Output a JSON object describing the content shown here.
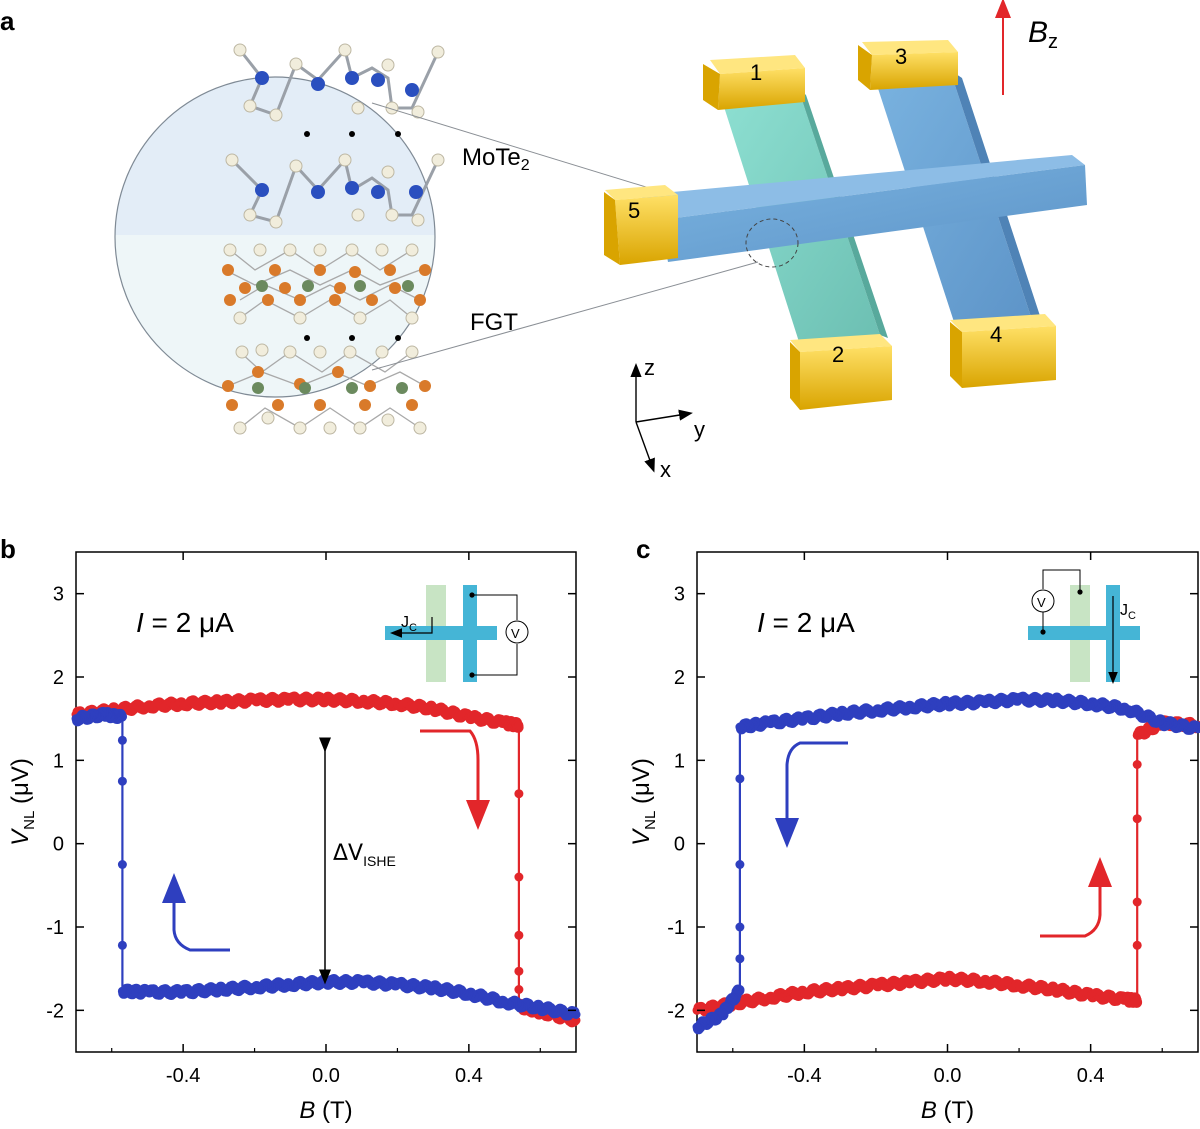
{
  "panel_labels": {
    "a": "a",
    "b": "b",
    "c": "c"
  },
  "schematic": {
    "layer_top": "MoTe",
    "layer_top_sub": "2",
    "layer_bottom": "FGT",
    "field_label": "B",
    "field_label_sub": "z",
    "contacts": [
      "1",
      "2",
      "3",
      "4",
      "5"
    ],
    "axes": {
      "z": "z",
      "y": "y",
      "x": "x"
    }
  },
  "colors": {
    "blue": "#2e3fbf",
    "red": "#e2262a",
    "contact_gold": "#f2c200",
    "channel_blue": "#6fa6d6",
    "channel_green": "#7ccdc0",
    "mo_atom": "#2a4fbf",
    "te_atom": "#f1eddc",
    "fe_atom": "#d97a2a",
    "ge_atom": "#6b8a5e"
  },
  "chart_data": [
    {
      "panel": "b",
      "type": "scatter",
      "annotation": "I = 2 μA",
      "annotation_parts": {
        "italic": "I",
        "rest": " = 2 μA"
      },
      "delta_label": "ΔV",
      "delta_label_sub": "ISHE",
      "inset_current_label": "J",
      "inset_current_sub": "C",
      "inset_meter_label": "V",
      "xlabel": "B (T)",
      "xlabel_parts": {
        "italic": "B",
        "rest": " (T)"
      },
      "ylabel": "V_NL (μV)",
      "ylabel_parts": {
        "italic": "V",
        "sub": "NL",
        "rest": " (μV)"
      },
      "xlim": [
        -0.7,
        0.7
      ],
      "ylim": [
        -2.5,
        3.5
      ],
      "xticks": [
        -0.4,
        0.0,
        0.4
      ],
      "xtick_labels": [
        "-0.4",
        "0.0",
        "0.4"
      ],
      "yticks": [
        -2,
        -1,
        0,
        1,
        2,
        3
      ],
      "ytick_labels": [
        "-2",
        "-1",
        "0",
        "1",
        "2",
        "3"
      ],
      "series": [
        {
          "color": "red",
          "x": [
            -0.7,
            -0.6,
            -0.5,
            -0.4,
            -0.3,
            -0.2,
            -0.1,
            0.0,
            0.1,
            0.2,
            0.3,
            0.4,
            0.5,
            0.54,
            0.54,
            0.54,
            0.54,
            0.54,
            0.54,
            0.54,
            0.6,
            0.7
          ],
          "y": [
            1.55,
            1.6,
            1.65,
            1.68,
            1.7,
            1.72,
            1.73,
            1.73,
            1.71,
            1.68,
            1.62,
            1.52,
            1.45,
            1.42,
            0.6,
            -0.4,
            -1.1,
            -1.53,
            -1.75,
            -1.95,
            -2.02,
            -2.12
          ]
        },
        {
          "color": "blue",
          "x": [
            0.7,
            0.6,
            0.5,
            0.4,
            0.3,
            0.2,
            0.1,
            0.0,
            -0.1,
            -0.2,
            -0.3,
            -0.4,
            -0.5,
            -0.57,
            -0.57,
            -0.57,
            -0.57,
            -0.57,
            -0.57,
            -0.62,
            -0.7
          ],
          "y": [
            -2.05,
            -1.97,
            -1.9,
            -1.8,
            -1.73,
            -1.69,
            -1.66,
            -1.66,
            -1.69,
            -1.72,
            -1.75,
            -1.78,
            -1.78,
            -1.77,
            -1.22,
            -0.25,
            0.75,
            1.24,
            1.52,
            1.55,
            1.5
          ]
        }
      ]
    },
    {
      "panel": "c",
      "type": "scatter",
      "annotation": "I = 2 μA",
      "annotation_parts": {
        "italic": "I",
        "rest": " = 2 μA"
      },
      "inset_current_label": "J",
      "inset_current_sub": "C",
      "inset_meter_label": "V",
      "xlabel": "B (T)",
      "xlabel_parts": {
        "italic": "B",
        "rest": " (T)"
      },
      "ylabel": "V_NL (μV)",
      "ylabel_parts": {
        "italic": "V",
        "sub": "NL",
        "rest": " (μV)"
      },
      "xlim": [
        -0.7,
        0.7
      ],
      "ylim": [
        -2.5,
        3.5
      ],
      "xticks": [
        -0.4,
        0.0,
        0.4
      ],
      "xtick_labels": [
        "-0.4",
        "0.0",
        "0.4"
      ],
      "yticks": [
        -2,
        -1,
        0,
        1,
        2,
        3
      ],
      "ytick_labels": [
        "-2",
        "-1",
        "0",
        "1",
        "2",
        "3"
      ],
      "series": [
        {
          "color": "red",
          "x": [
            -0.7,
            -0.6,
            -0.5,
            -0.4,
            -0.3,
            -0.2,
            -0.1,
            0.0,
            0.1,
            0.2,
            0.3,
            0.4,
            0.5,
            0.53,
            0.53,
            0.53,
            0.53,
            0.53,
            0.53,
            0.6,
            0.7
          ],
          "y": [
            -2.0,
            -1.92,
            -1.85,
            -1.78,
            -1.74,
            -1.7,
            -1.66,
            -1.62,
            -1.65,
            -1.7,
            -1.75,
            -1.82,
            -1.87,
            -1.88,
            -1.22,
            -0.7,
            0.3,
            0.95,
            1.3,
            1.45,
            1.42
          ]
        },
        {
          "color": "blue",
          "x": [
            0.7,
            0.6,
            0.5,
            0.4,
            0.3,
            0.2,
            0.1,
            0.0,
            -0.1,
            -0.2,
            -0.3,
            -0.4,
            -0.5,
            -0.58,
            -0.58,
            -0.58,
            -0.58,
            -0.58,
            -0.58,
            -0.63,
            -0.7
          ],
          "y": [
            1.38,
            1.45,
            1.62,
            1.68,
            1.72,
            1.73,
            1.7,
            1.68,
            1.64,
            1.6,
            1.56,
            1.5,
            1.45,
            1.4,
            0.78,
            -0.25,
            -1.0,
            -1.38,
            -1.75,
            -2.05,
            -2.2
          ]
        }
      ]
    }
  ]
}
